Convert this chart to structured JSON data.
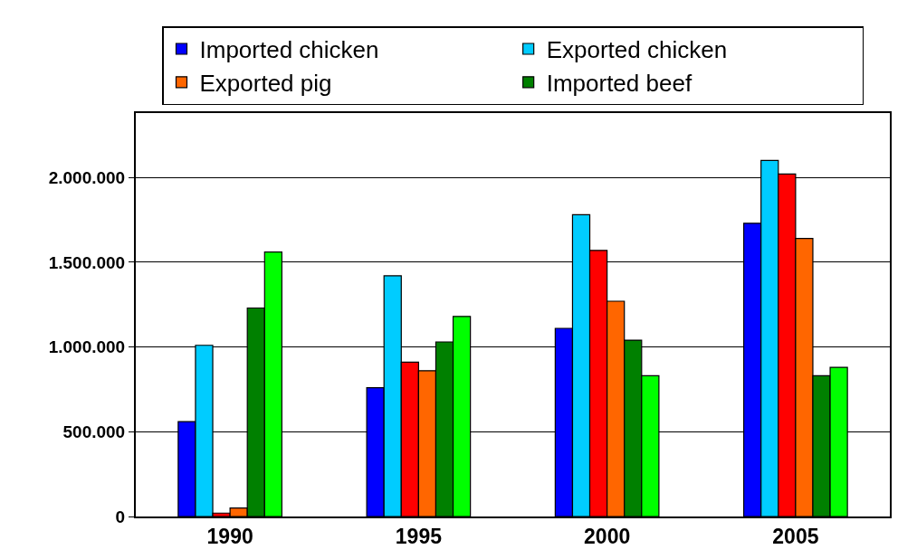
{
  "chart_data": {
    "type": "bar",
    "categories": [
      "1990",
      "1995",
      "2000",
      "2005"
    ],
    "series": [
      {
        "name": "Imported chicken",
        "color": "#0000ff",
        "values": [
          560000,
          760000,
          1110000,
          1730000
        ]
      },
      {
        "name": "Exported chicken",
        "color": "#00ccff",
        "values": [
          1010000,
          1420000,
          1780000,
          2100000
        ]
      },
      {
        "color": "#ff0000",
        "values": [
          20000,
          910000,
          1570000,
          2020000
        ]
      },
      {
        "name": "Exported pig",
        "color": "#ff6600",
        "values": [
          50000,
          860000,
          1270000,
          1640000
        ]
      },
      {
        "name": "Imported beef",
        "color": "#008000",
        "values": [
          1230000,
          1030000,
          1040000,
          830000
        ]
      },
      {
        "color": "#00ff00",
        "values": [
          1560000,
          1180000,
          830000,
          880000
        ]
      }
    ],
    "ylim": [
      0,
      2380000
    ],
    "yticks": [
      {
        "value": 0,
        "label": "0"
      },
      {
        "value": 500000,
        "label": "500.000"
      },
      {
        "value": 1000000,
        "label": "1.000.000"
      },
      {
        "value": 1500000,
        "label": "1.500.000"
      },
      {
        "value": 2000000,
        "label": "2.000.000"
      }
    ],
    "grid": "y",
    "legend": "top"
  }
}
